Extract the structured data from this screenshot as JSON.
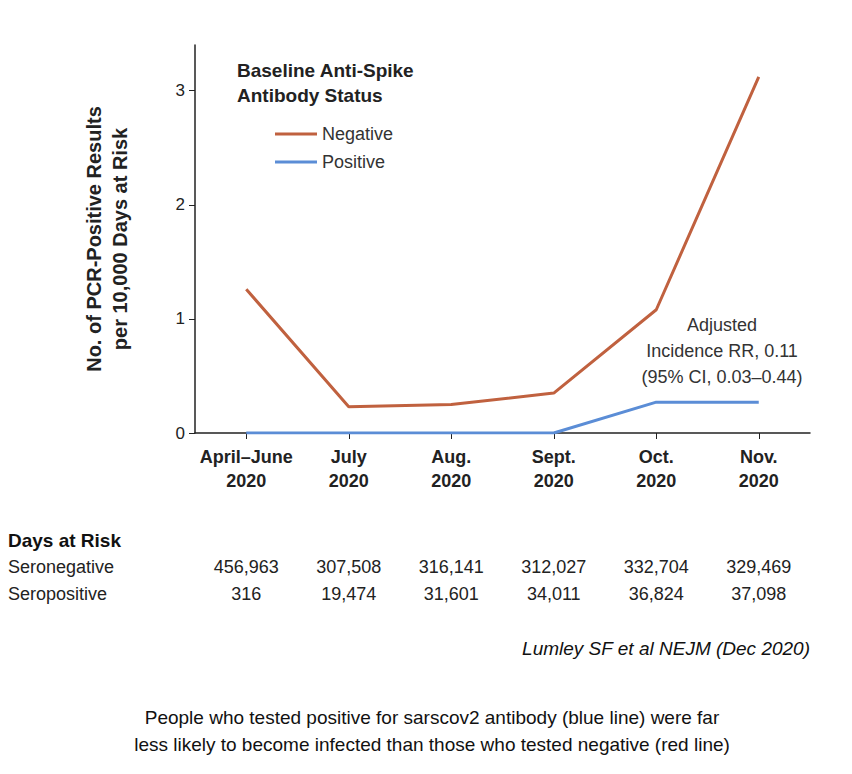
{
  "chart_data": {
    "type": "line",
    "y_label": "No. of PCR-Positive Results\nper 10,000 Days at Risk",
    "categories": [
      "April–June\n2020",
      "July\n2020",
      "Aug.\n2020",
      "Sept.\n2020",
      "Oct.\n2020",
      "Nov.\n2020"
    ],
    "legend_title": "Baseline Anti-Spike\nAntibody Status",
    "series": [
      {
        "name": "Negative",
        "color": "#c0613f",
        "values": [
          1.26,
          0.23,
          0.25,
          0.35,
          1.08,
          3.12
        ]
      },
      {
        "name": "Positive",
        "color": "#5b8dd6",
        "values": [
          0,
          0,
          0,
          0,
          0.27,
          0.27
        ]
      }
    ],
    "ylim": [
      0,
      3.4
    ],
    "yticks": [
      0,
      1,
      2,
      3
    ],
    "grid": false,
    "legend": "top-left",
    "annotations": [
      "Adjusted\nIncidence RR, 0.11\n(95% CI, 0.03–0.44)"
    ],
    "days_at_risk": {
      "title": "Days at Risk",
      "rows": [
        {
          "label": "Seronegative",
          "values": [
            "456,963",
            "307,508",
            "316,141",
            "312,027",
            "332,704",
            "329,469"
          ]
        },
        {
          "label": "Seropositive",
          "values": [
            "316",
            "19,474",
            "31,601",
            "34,011",
            "36,824",
            "37,098"
          ]
        }
      ]
    },
    "source": "Lumley SF et al NEJM (Dec 2020)",
    "caption": "People who tested positive for sarscov2 antibody (blue line) were far\nless likely to become infected than those who tested negative (red line)"
  }
}
